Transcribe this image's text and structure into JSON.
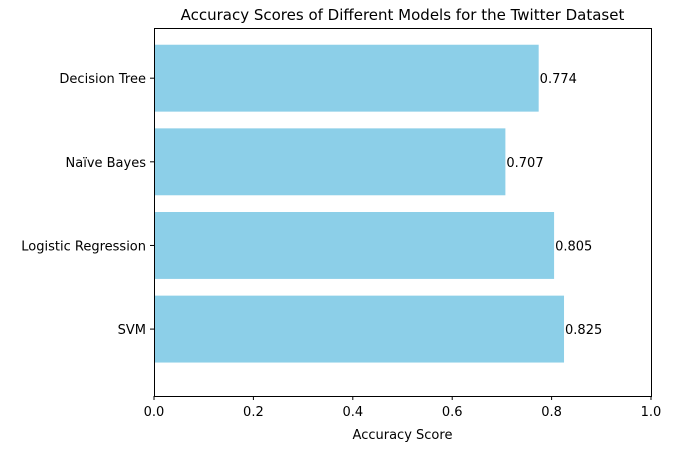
{
  "chart_data": {
    "type": "bar",
    "orientation": "horizontal",
    "title": "Accuracy Scores of Different Models for the Twitter Dataset",
    "xlabel": "Accuracy Score",
    "ylabel": "",
    "categories": [
      "Decision Tree",
      "Naïve Bayes",
      "Logistic Regression",
      "SVM"
    ],
    "values": [
      0.774,
      0.707,
      0.805,
      0.825
    ],
    "data_labels": [
      "0.774",
      "0.707",
      "0.805",
      "0.825"
    ],
    "xlim": [
      0,
      1
    ],
    "xticks": [
      0,
      0.2,
      0.4,
      0.6,
      0.8,
      1
    ],
    "xtick_labels": [
      "0.0",
      "0.2",
      "0.4",
      "0.6",
      "0.8",
      "1.0"
    ],
    "grid": false,
    "bar_color": "#8ccfe8"
  }
}
